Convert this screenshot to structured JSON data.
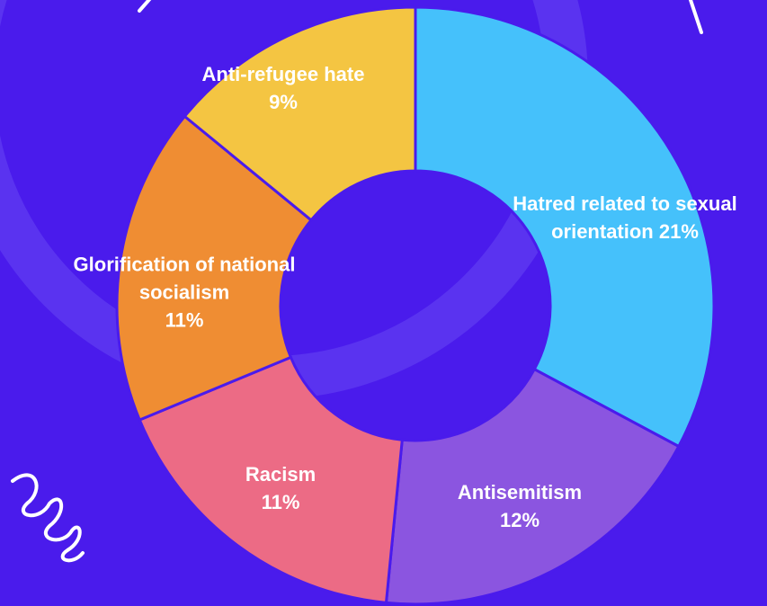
{
  "chart_data": {
    "type": "donut",
    "categories": [
      "Hatred related to sexual orientation",
      "Antisemitism",
      "Racism",
      "Glorification of national socialism",
      "Anti-refugee hate"
    ],
    "values": [
      21,
      12,
      11,
      11,
      9
    ],
    "value_labels": [
      "21%",
      "12%",
      "11%",
      "11%",
      "9%"
    ],
    "colors": [
      "#45c1fb",
      "#8b55e0",
      "#ec6b85",
      "#ef8d33",
      "#f4c542"
    ]
  }
}
